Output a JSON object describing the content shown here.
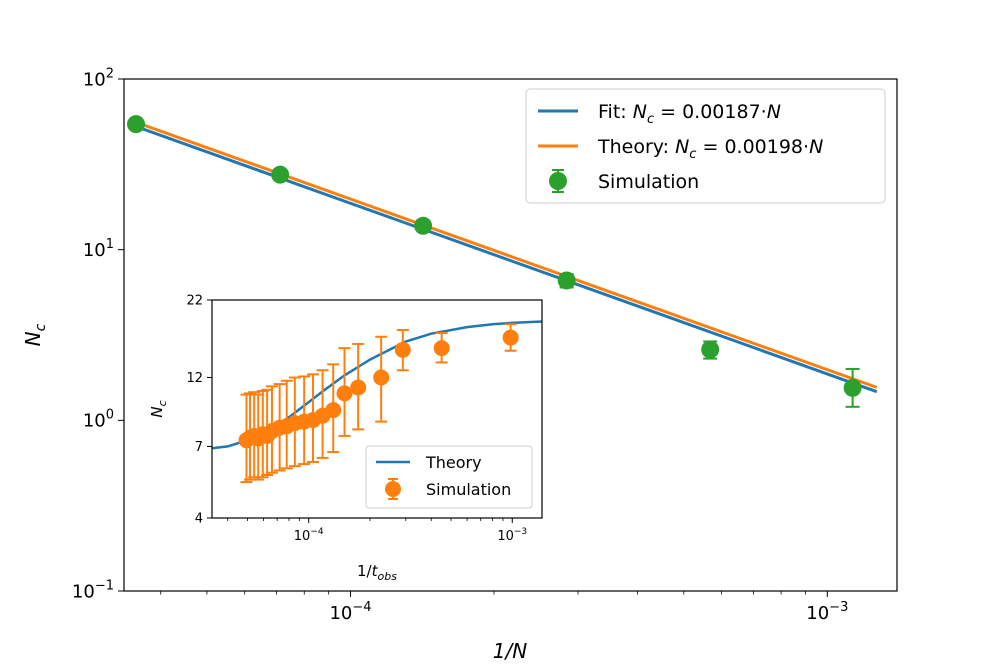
{
  "chart_data": [
    {
      "type": "scatter",
      "xlabel": "1/N",
      "ylabel": "N_c",
      "x_scale": "log",
      "y_scale": "log",
      "xlim": [
        3.35e-05,
        0.0014
      ],
      "ylim": [
        0.1,
        100
      ],
      "x_ticks": [
        {
          "value": 0.0001,
          "base": "10",
          "exp": "−4"
        },
        {
          "value": 0.001,
          "base": "10",
          "exp": "−3"
        }
      ],
      "y_ticks": [
        {
          "value": 0.1,
          "base": "10",
          "exp": "−1"
        },
        {
          "value": 1,
          "base": "10",
          "exp": "0"
        },
        {
          "value": 10,
          "base": "10",
          "exp": "1"
        },
        {
          "value": 100,
          "base": "10",
          "exp": "2"
        }
      ],
      "legend_position": "top-right",
      "series": [
        {
          "name": "Fit: N_c = 0.00187·N",
          "legend_prefix": "Fit: ",
          "legend_coef": " = 0.00187·",
          "kind": "line",
          "color": "#1f77b4",
          "x": [
            3.55e-05,
            0.00127
          ],
          "y": [
            52.68,
            1.4724
          ]
        },
        {
          "name": "Theory: N_c = 0.00198·N",
          "legend_prefix": "Theory: ",
          "legend_coef": " = 0.00198·",
          "kind": "line",
          "color": "#ff7f0e",
          "x": [
            3.55e-05,
            0.00127
          ],
          "y": [
            55.77,
            1.559
          ]
        },
        {
          "name": "Simulation",
          "kind": "scatter",
          "color": "#2ca02c",
          "x": [
            3.55e-05,
            7.12e-05,
            0.000142,
            0.000284,
            0.000568,
            0.00113
          ],
          "y": [
            54.4,
            27.5,
            13.8,
            6.6,
            2.6,
            1.55
          ],
          "y_err_low": [
            51.5,
            26.0,
            13.0,
            6.0,
            2.3,
            1.2
          ],
          "y_err_high": [
            57.5,
            29.2,
            14.8,
            7.2,
            2.9,
            2.0
          ]
        }
      ]
    },
    {
      "type": "scatter",
      "xlabel": "1/t_obs",
      "ylabel": "N_c",
      "x_scale": "log",
      "y_scale": "log",
      "xlim": [
        3.35e-05,
        0.0014
      ],
      "ylim": [
        4,
        22
      ],
      "x_ticks": [
        {
          "value": 0.0001,
          "base": "10",
          "exp": "−4"
        },
        {
          "value": 0.001,
          "base": "10",
          "exp": "−3"
        }
      ],
      "y_ticks": [
        {
          "value": 4,
          "label": "4"
        },
        {
          "value": 7,
          "label": "7"
        },
        {
          "value": 12,
          "label": "12"
        },
        {
          "value": 22,
          "label": "22"
        }
      ],
      "legend_position": "bottom-right",
      "series": [
        {
          "name": "Theory",
          "kind": "line",
          "color": "#1f77b4",
          "x": [
            3.35e-05,
            4e-05,
            5e-05,
            6e-05,
            7e-05,
            8e-05,
            0.0001,
            0.00012,
            0.00015,
            0.0002,
            0.0003,
            0.0004,
            0.0006,
            0.0008,
            0.001,
            0.0014
          ],
          "y": [
            6.9,
            7.0,
            7.35,
            7.8,
            8.3,
            8.8,
            9.9,
            10.9,
            12.2,
            13.8,
            15.9,
            16.9,
            17.8,
            18.2,
            18.4,
            18.6
          ]
        },
        {
          "name": "Simulation",
          "kind": "scatter",
          "color": "#ff7f0e",
          "x": [
            4.95e-05,
            5.15e-05,
            5.4e-05,
            5.65e-05,
            5.95e-05,
            6.25e-05,
            6.6e-05,
            7.2e-05,
            7.8e-05,
            8.55e-05,
            9.5e-05,
            0.000105,
            0.000117,
            0.000132,
            0.00015,
            0.000175,
            0.000227,
            0.00029,
            0.00045,
            0.000982
          ],
          "y": [
            7.35,
            7.5,
            7.6,
            7.45,
            7.7,
            7.6,
            7.9,
            8.1,
            8.2,
            8.4,
            8.5,
            8.6,
            8.9,
            9.3,
            10.6,
            11.1,
            12.0,
            14.9,
            15.1,
            16.4
          ],
          "y_err_low": [
            5.3,
            5.4,
            5.5,
            5.4,
            5.5,
            5.6,
            5.7,
            5.8,
            5.9,
            6.0,
            6.1,
            6.2,
            6.4,
            6.7,
            7.6,
            8.0,
            8.5,
            12.7,
            13.5,
            14.8
          ],
          "y_err_high": [
            10.5,
            10.6,
            10.7,
            10.5,
            10.8,
            10.9,
            11.2,
            11.4,
            11.7,
            12.0,
            12.1,
            12.3,
            12.7,
            13.3,
            15.1,
            15.6,
            16.5,
            17.4,
            17.0,
            18.2
          ]
        }
      ]
    }
  ]
}
